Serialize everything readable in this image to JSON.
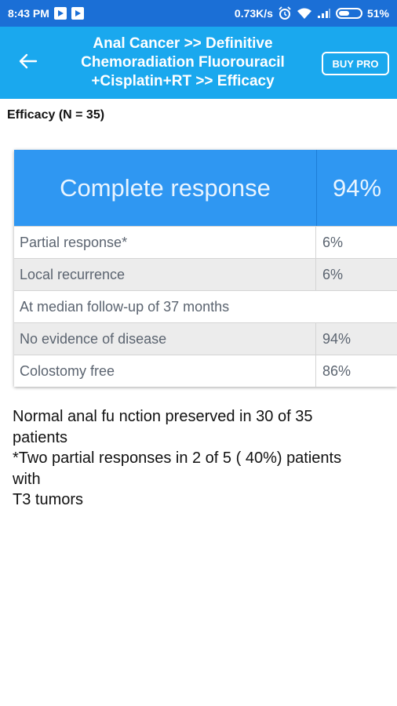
{
  "status_bar": {
    "time": "8:43 PM",
    "network_speed": "0.73K/s",
    "battery": "51%",
    "battery_level": 0.51,
    "icons": [
      "play-store-icon",
      "play-store-icon",
      "alarm-icon",
      "wifi-icon",
      "signal-icon",
      "battery-icon"
    ]
  },
  "app_bar": {
    "title_lines": [
      "Anal Cancer >> Definitive",
      "Chemoradiation Fluorouracil",
      "+Cisplatin+RT >> Efficacy"
    ],
    "buy_label": "BUY PRO",
    "background": "#1aa8ee"
  },
  "page": {
    "heading": "Efficacy (N = 35)"
  },
  "table": {
    "header": {
      "label": "Complete response",
      "value": "94%"
    },
    "rows": [
      {
        "label": "Partial response*",
        "value": "6%"
      },
      {
        "label": "Local recurrence",
        "value": "6%"
      },
      {
        "label": "At median follow-up of 37 months"
      },
      {
        "label": "No evidence of disease",
        "value": "94%"
      },
      {
        "label": "Colostomy free",
        "value": "86%"
      }
    ],
    "header_color": "#2f97f2"
  },
  "notes": {
    "lines": [
      "Normal anal fu nction preserved in 30 of 35",
      "patients",
      "*Two partial responses in 2 of 5 ( 40%) patients",
      "with",
      "T3 tumors"
    ]
  }
}
